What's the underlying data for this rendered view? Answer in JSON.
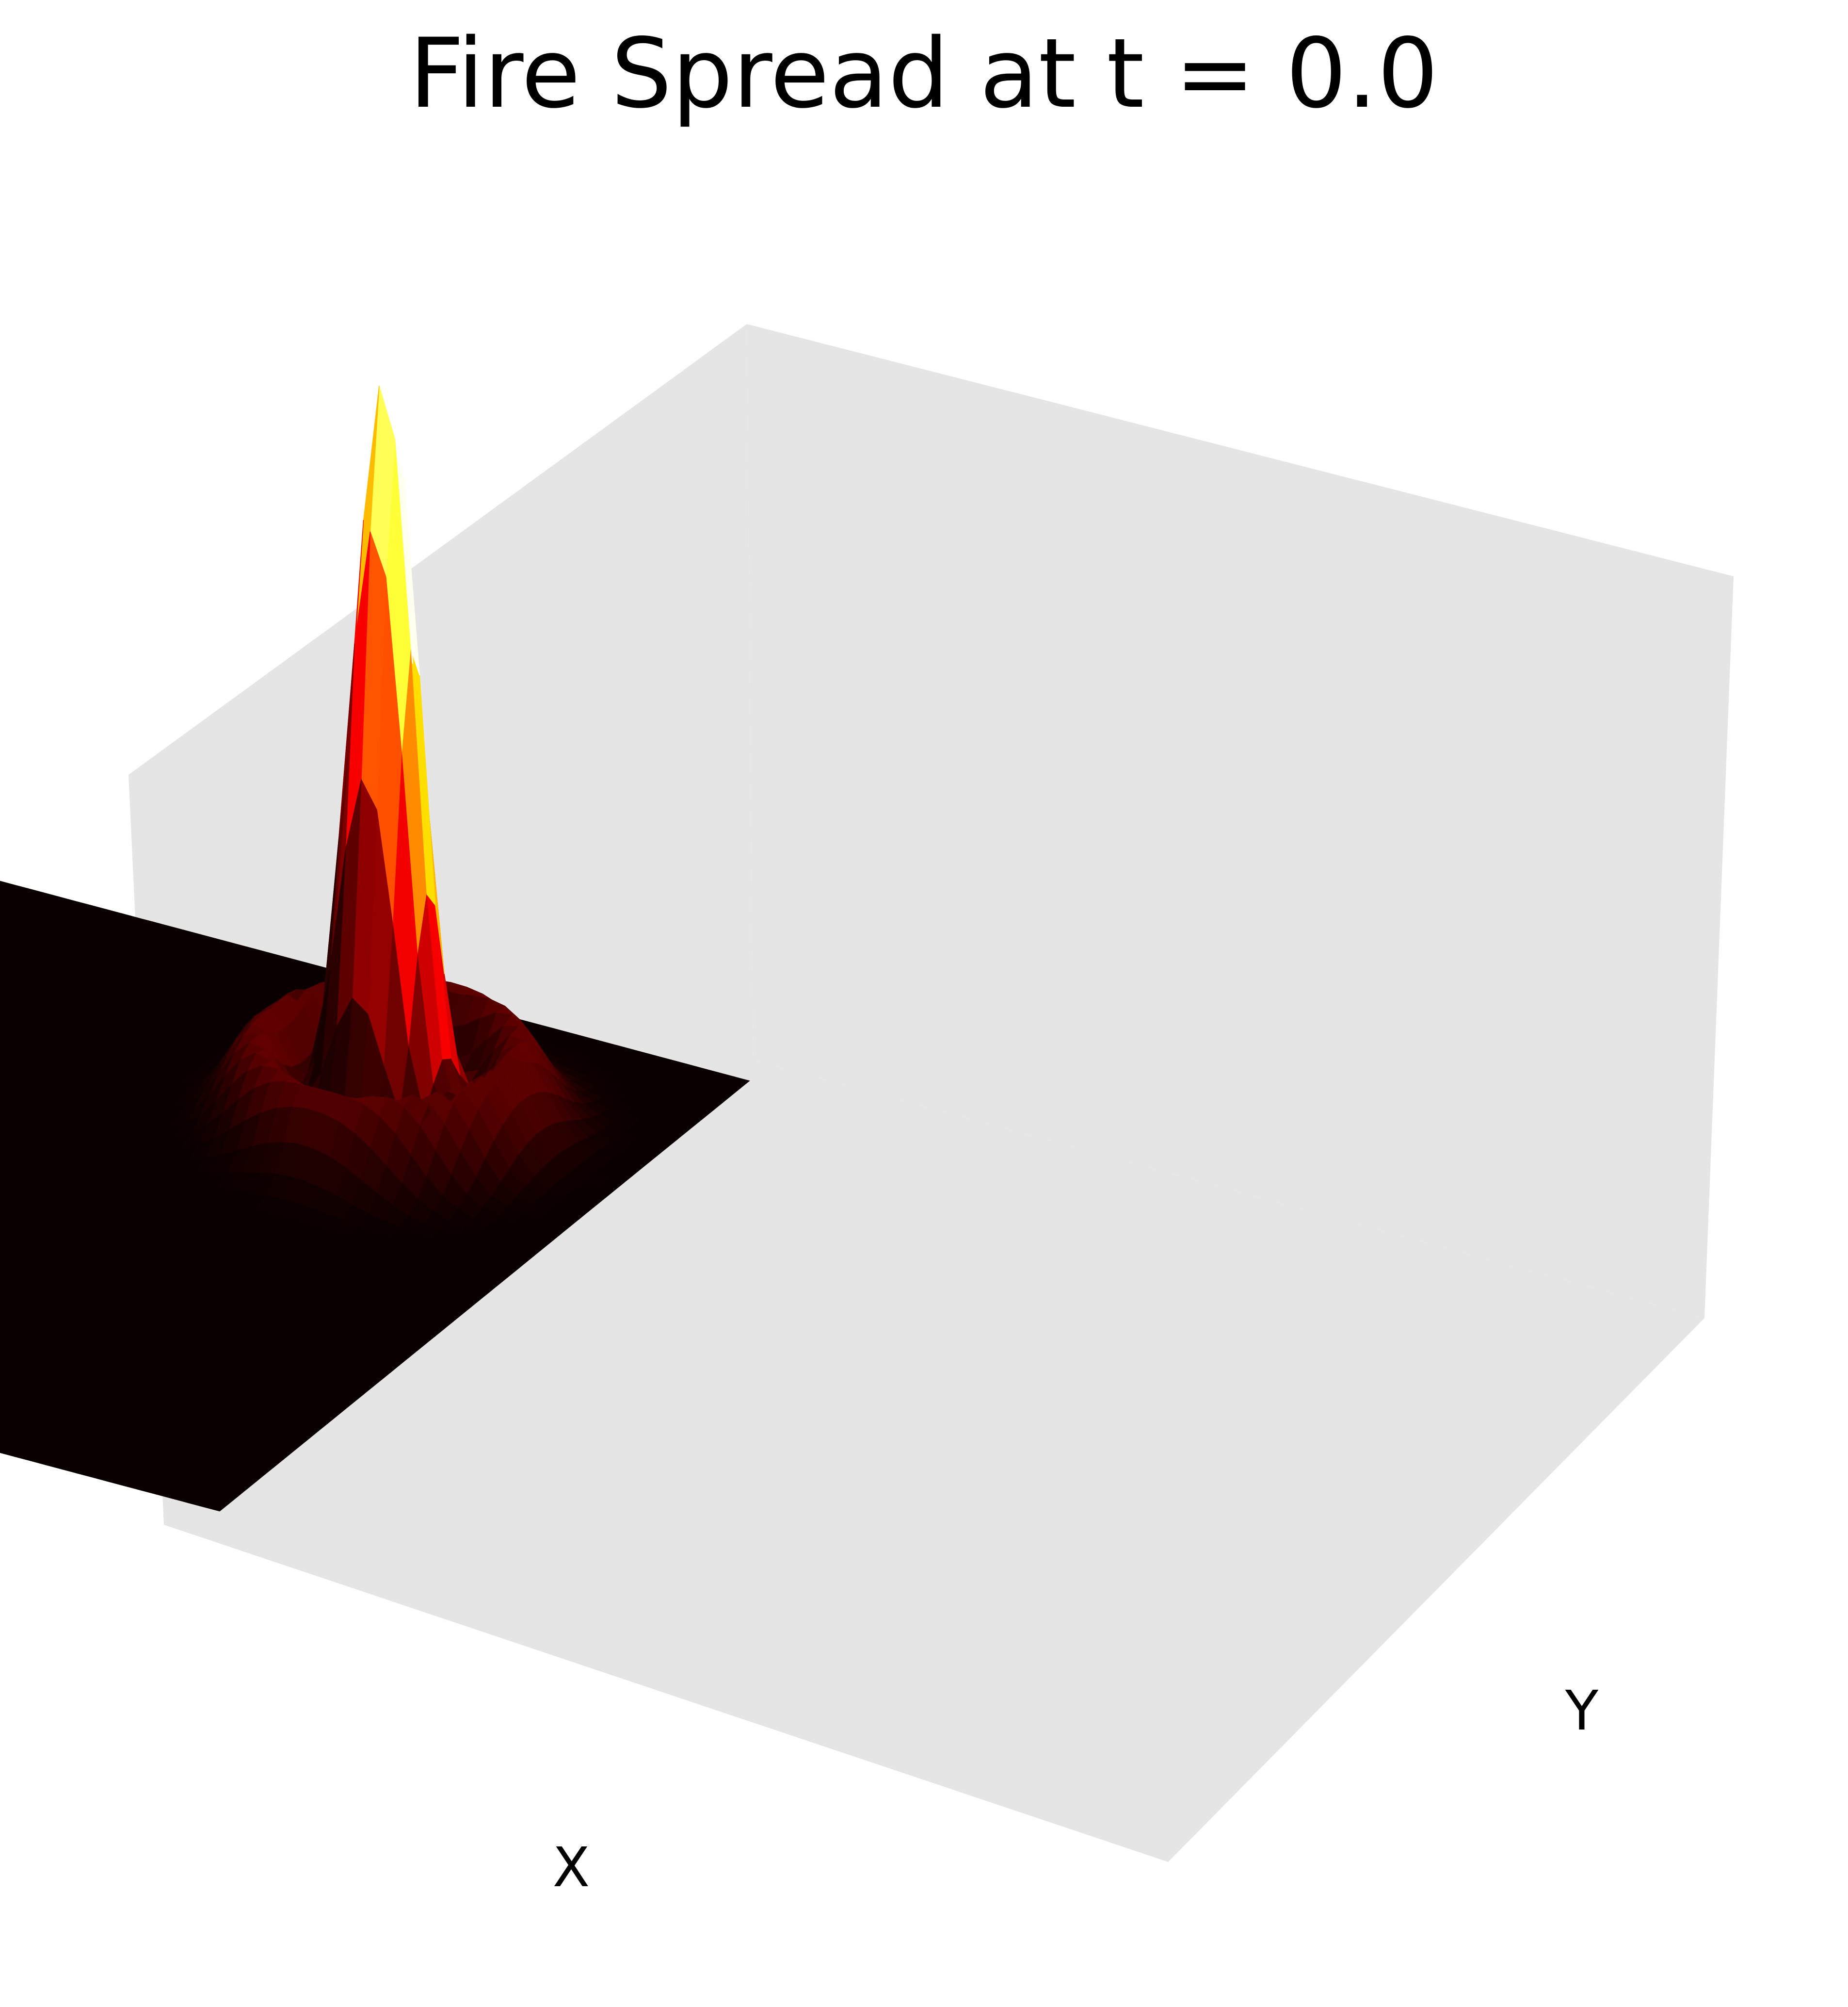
{
  "chart_data": {
    "type": "surface3d",
    "title": "Fire Spread at t = 0.0",
    "xlabel": "X",
    "ylabel": "Y",
    "zlabel": "",
    "ticks_visible": false,
    "grid": false,
    "colormap": "hot",
    "pane_color": "#e5e5e5",
    "view": {
      "elevation_deg": 30,
      "azimuth_deg": -60
    },
    "xlim": [
      -10,
      10
    ],
    "ylim": [
      -10,
      10
    ],
    "zlim": [
      0,
      1
    ],
    "grid_points": 60,
    "surface": {
      "function": "gaussian_cos",
      "peak": 1.0,
      "center": [
        -5,
        5
      ],
      "sigma": 1.0,
      "ripple_frequency": 2.0
    }
  }
}
